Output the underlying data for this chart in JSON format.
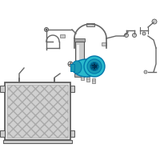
{
  "bg_color": "#ffffff",
  "line_color": "#666666",
  "highlight_color": "#29b8cc",
  "highlight_dark": "#0077aa",
  "highlight_mid": "#1a9ab5",
  "light_gray": "#cccccc",
  "mid_gray": "#aaaaaa",
  "dark_gray": "#555555",
  "cond_face": "#e0e0e0",
  "cond_inner": "#d0d0d0",
  "white": "#ffffff",
  "near_white": "#f5f5f5"
}
